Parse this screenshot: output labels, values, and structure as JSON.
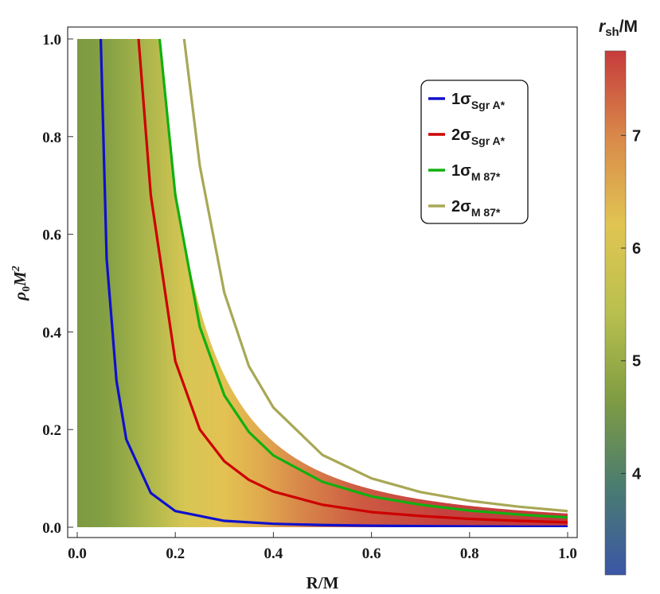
{
  "chart_data": {
    "type": "contour-density",
    "xlabel": "R/M",
    "ylabel_base": "ρ",
    "ylabel_sub": "0",
    "ylabel_mid": "M",
    "ylabel_sup": "2",
    "xlim": [
      0,
      1
    ],
    "ylim": [
      0,
      1
    ],
    "xticks": [
      0.0,
      0.2,
      0.4,
      0.6,
      0.8,
      1.0
    ],
    "yticks": [
      0.0,
      0.2,
      0.4,
      0.6,
      0.8,
      1.0
    ],
    "xtick_labels": [
      "0.0",
      "0.2",
      "0.4",
      "0.6",
      "0.8",
      "1.0"
    ],
    "ytick_labels": [
      "0.0",
      "0.2",
      "0.4",
      "0.6",
      "0.8",
      "1.0"
    ],
    "colorbar": {
      "title_main": "r",
      "title_sub": "sh",
      "title_tail": "/M",
      "range": [
        3.1,
        7.75
      ],
      "ticks": [
        4,
        5,
        6,
        7
      ],
      "tick_labels": [
        "4",
        "5",
        "6",
        "7"
      ],
      "colors": [
        "#3b56a6",
        "#4a7c70",
        "#7f9c43",
        "#b9c04e",
        "#e0c552",
        "#d98a4a",
        "#c63c3c"
      ]
    },
    "region_boundary_k": 0.028,
    "legend_position": "top-right",
    "legend": [
      {
        "prefix": "1σ",
        "sub": "Sgr A*",
        "color": "#1010cc"
      },
      {
        "prefix": "2σ",
        "sub": "Sgr A*",
        "color": "#cc0000"
      },
      {
        "prefix": "1σ",
        "sub": "M 87*",
        "color": "#10b010"
      },
      {
        "prefix": "2σ",
        "sub": "M 87*",
        "color": "#a8a855"
      }
    ],
    "series": [
      {
        "name": "1σ Sgr A*",
        "color": "#1010cc",
        "x": [
          0.048,
          0.06,
          0.08,
          0.1,
          0.15,
          0.2,
          0.3,
          0.4,
          0.5,
          0.6,
          0.7,
          0.8,
          0.9,
          1.0
        ],
        "y": [
          1.0,
          0.55,
          0.3,
          0.18,
          0.07,
          0.033,
          0.013,
          0.007,
          0.0045,
          0.003,
          0.0022,
          0.0017,
          0.0013,
          0.001
        ]
      },
      {
        "name": "2σ Sgr A*",
        "color": "#cc0000",
        "x": [
          0.125,
          0.15,
          0.2,
          0.25,
          0.3,
          0.35,
          0.4,
          0.5,
          0.6,
          0.7,
          0.8,
          0.9,
          1.0
        ],
        "y": [
          1.0,
          0.68,
          0.34,
          0.2,
          0.135,
          0.097,
          0.073,
          0.046,
          0.031,
          0.023,
          0.017,
          0.013,
          0.01
        ]
      },
      {
        "name": "1σ M 87*",
        "color": "#10b010",
        "x": [
          0.168,
          0.2,
          0.25,
          0.3,
          0.35,
          0.4,
          0.5,
          0.6,
          0.7,
          0.8,
          0.9,
          1.0
        ],
        "y": [
          1.0,
          0.68,
          0.41,
          0.27,
          0.195,
          0.147,
          0.093,
          0.063,
          0.046,
          0.034,
          0.026,
          0.02
        ]
      },
      {
        "name": "2σ M 87*",
        "color": "#a8a855",
        "x": [
          0.218,
          0.25,
          0.3,
          0.35,
          0.4,
          0.5,
          0.6,
          0.7,
          0.8,
          0.9,
          1.0
        ],
        "y": [
          1.0,
          0.74,
          0.48,
          0.33,
          0.245,
          0.148,
          0.1,
          0.072,
          0.054,
          0.042,
          0.033
        ]
      }
    ]
  }
}
